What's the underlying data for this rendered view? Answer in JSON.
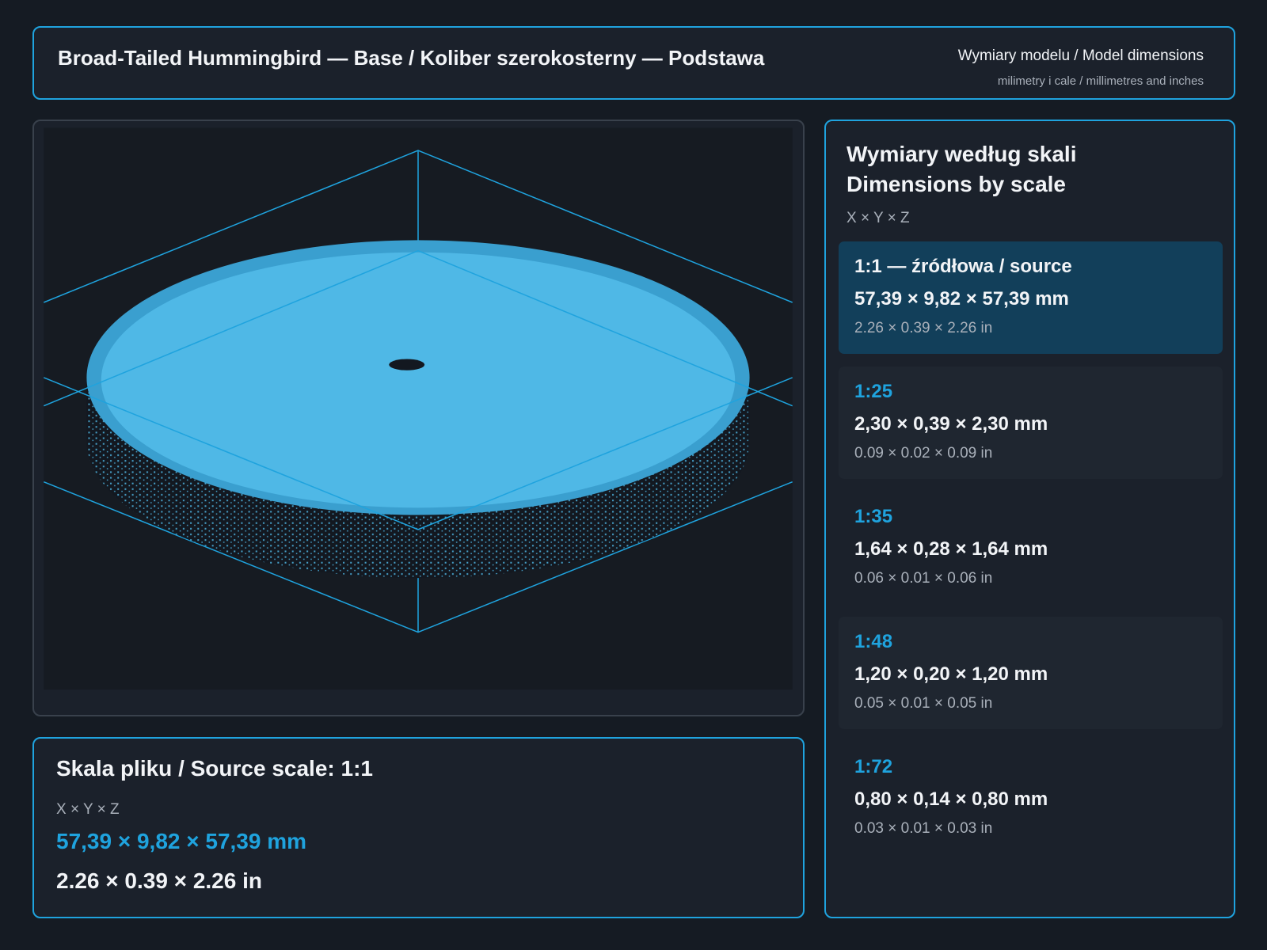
{
  "header": {
    "title": "Broad-Tailed Hummingbird — Base / Koliber szerokosterny — Podstawa",
    "subtitle": "Wymiary modelu / Model dimensions",
    "note": "milimetry i cale / millimetres and inches"
  },
  "scales_panel": {
    "title_pl": "Wymiary według skali",
    "title_en": "Dimensions by scale",
    "axes": "X × Y × Z",
    "scales": [
      {
        "label": "1:1  —  źródłowa / source",
        "mm": "57,39 × 9,82 × 57,39 mm",
        "in": "2.26 × 0.39 × 2.26 in"
      },
      {
        "label": "1:25",
        "mm": "2,30 × 0,39 × 2,30 mm",
        "in": "0.09 × 0.02 × 0.09 in"
      },
      {
        "label": "1:35",
        "mm": "1,64 × 0,28 × 1,64 mm",
        "in": "0.06 × 0.01 × 0.06 in"
      },
      {
        "label": "1:48",
        "mm": "1,20 × 0,20 × 1,20 mm",
        "in": "0.05 × 0.01 × 0.05 in"
      },
      {
        "label": "1:72",
        "mm": "0,80 × 0,14 × 0,80 mm",
        "in": "0.03 × 0.01 × 0.03 in"
      }
    ]
  },
  "source_panel": {
    "title": "Skala pliku / Source scale: 1:1",
    "axes": "X × Y × Z",
    "mm": "57,39 × 9,82 × 57,39 mm",
    "in": "2.26 × 0.39 × 2.26 in"
  }
}
